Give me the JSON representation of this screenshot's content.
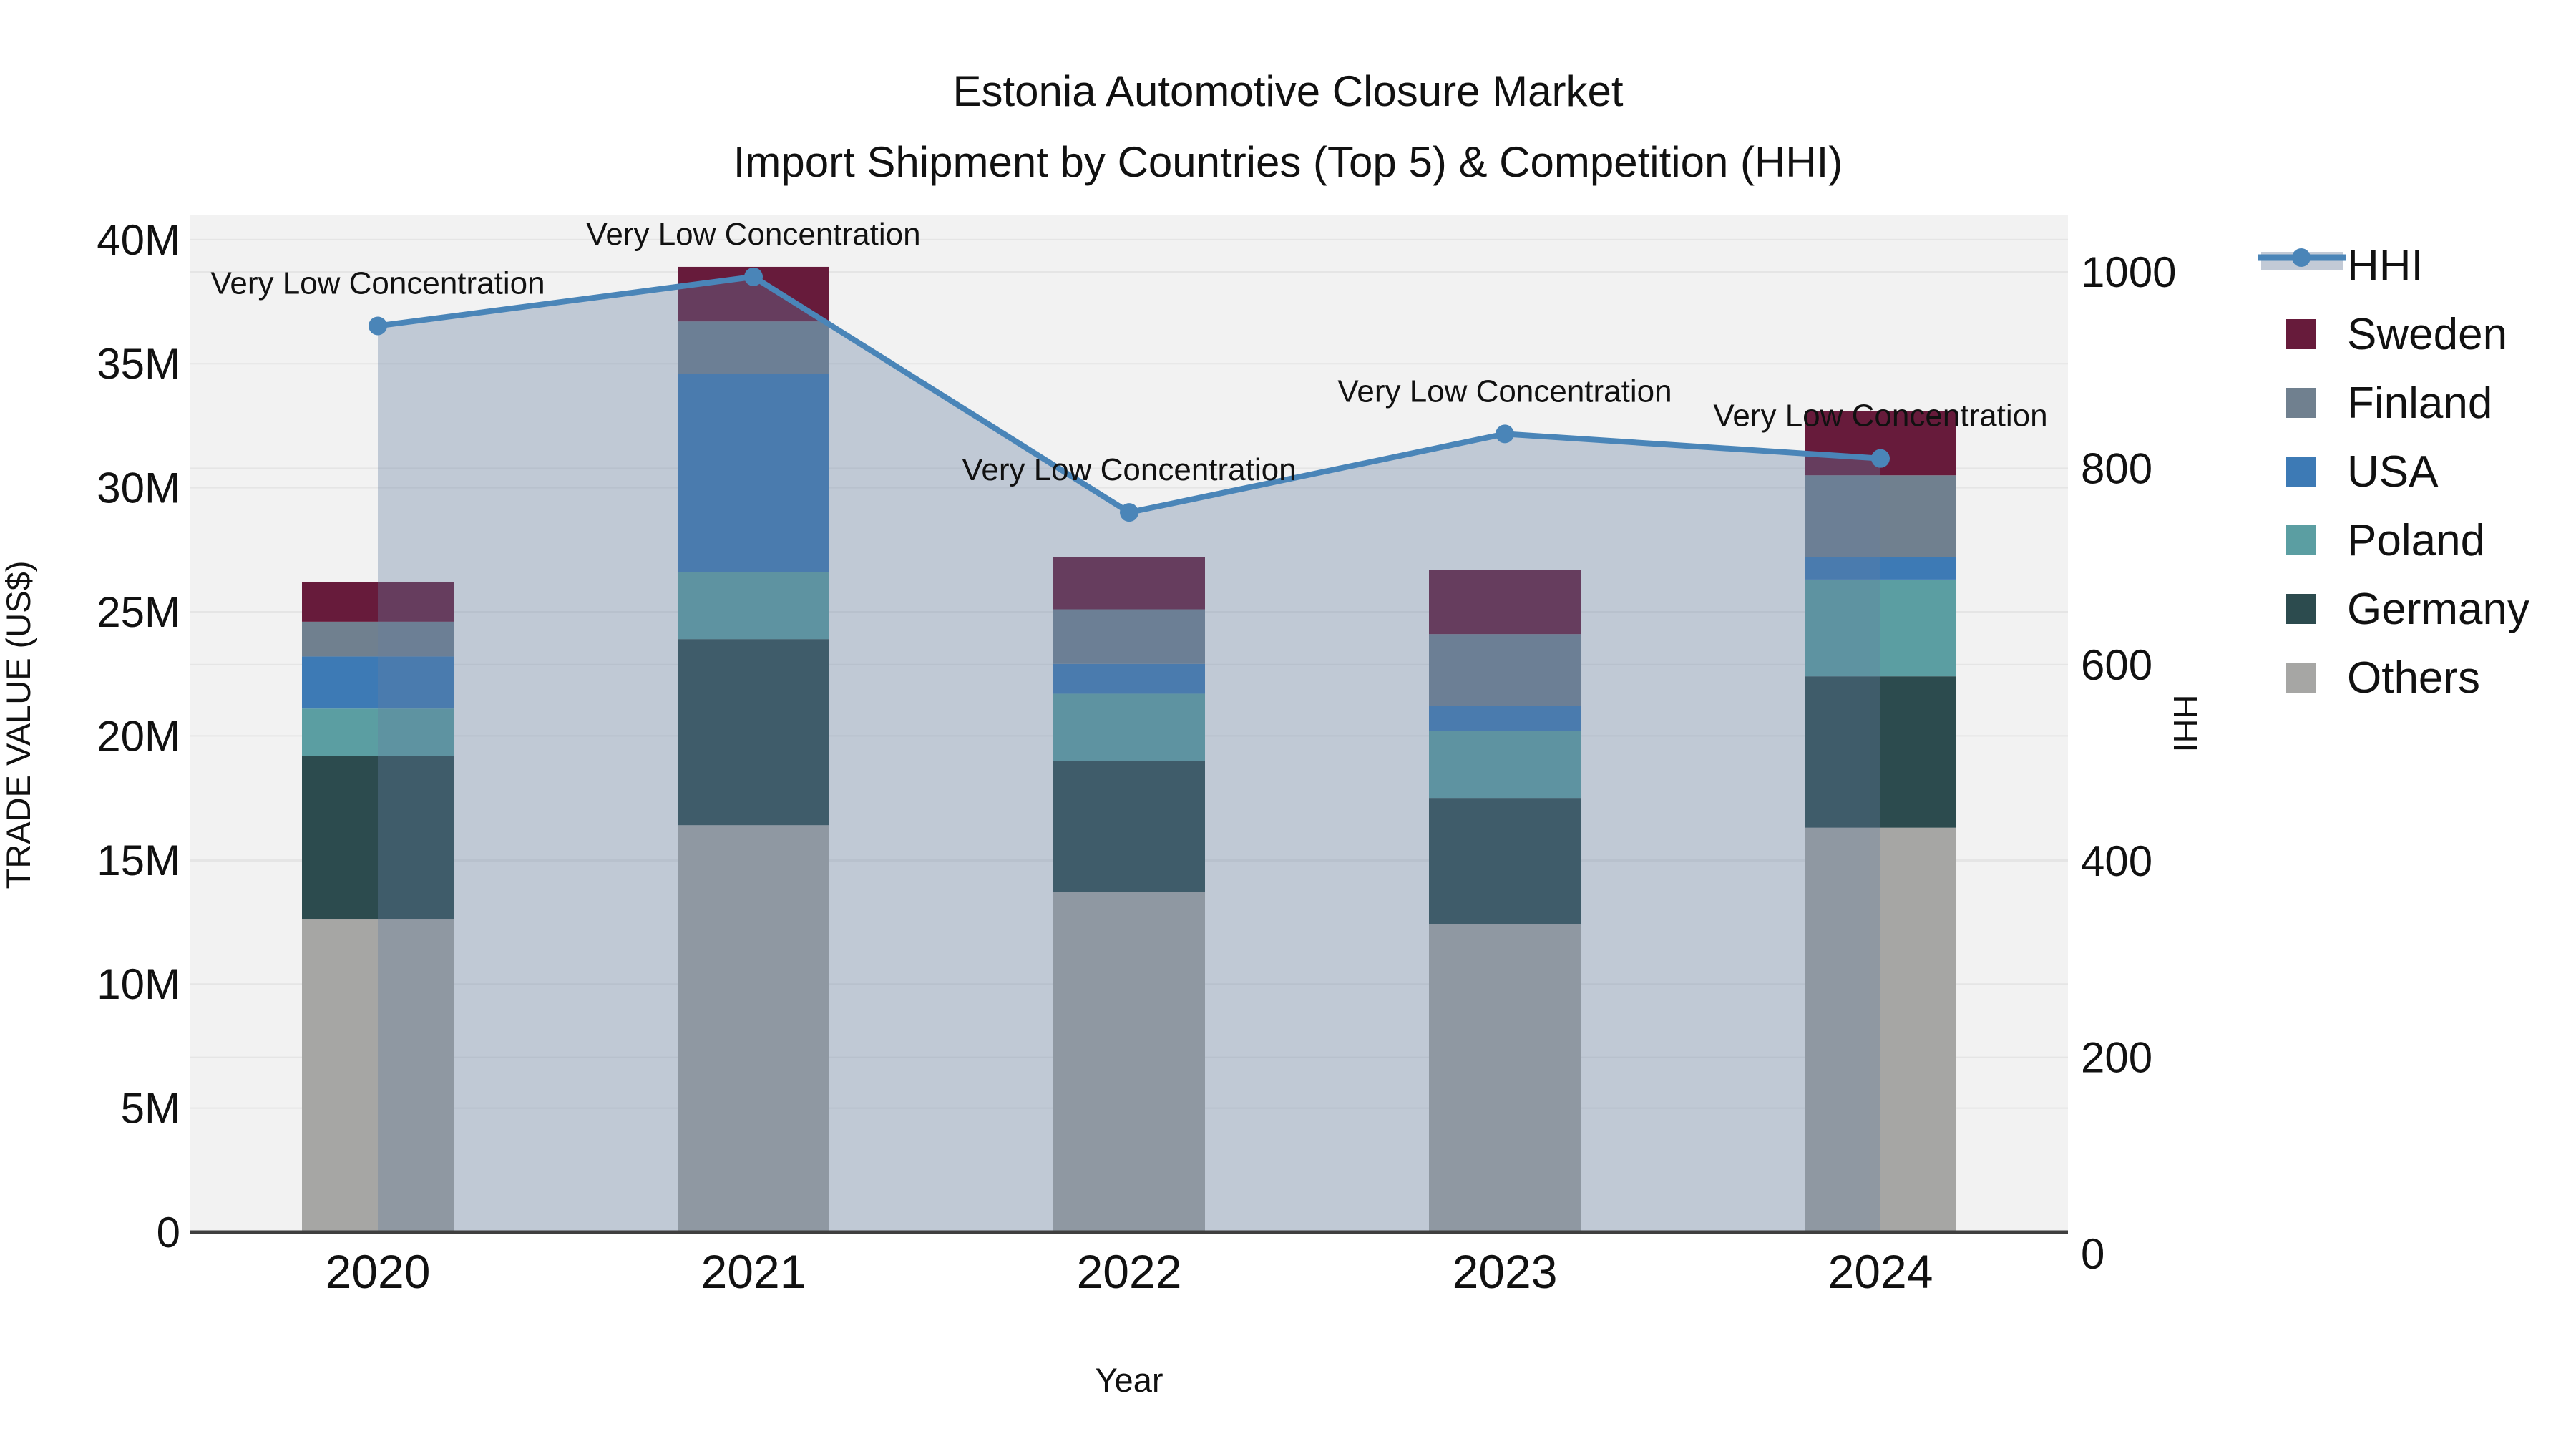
{
  "title": {
    "line1": "Estonia Automotive Closure Market",
    "line2": "Import Shipment by Countries (Top 5) & Competition (HHI)"
  },
  "axes": {
    "x": {
      "title": "Year",
      "categories": [
        "2020",
        "2021",
        "2022",
        "2023",
        "2024"
      ]
    },
    "y_left": {
      "title": "TRADE VALUE (US$)",
      "ticks": [
        "0",
        "5M",
        "10M",
        "15M",
        "20M",
        "25M",
        "30M",
        "35M",
        "40M"
      ],
      "tick_values_m": [
        0,
        5,
        10,
        15,
        20,
        25,
        30,
        35,
        40
      ],
      "range_m": [
        0,
        40.8
      ]
    },
    "y_right": {
      "title": "HHI",
      "ticks": [
        "0",
        "200",
        "400",
        "600",
        "800",
        "1000"
      ],
      "tick_values": [
        0,
        200,
        400,
        600,
        800,
        1000
      ],
      "range": [
        0,
        1000
      ]
    }
  },
  "colors": {
    "background": "#ffffff",
    "plot_background": "#f2f2f2",
    "gridline": "#e5e5e5",
    "axis_line": "#3f3f3f",
    "text": "#111111",
    "hhi_line": "#4a85b8",
    "hhi_area": "rgba(100,125,160,0.35)",
    "hhi_area_swatch": "#c2cad6",
    "sweden": "#671b3b",
    "finland": "#70808f",
    "usa": "#3d7ab5",
    "poland": "#5b9ea2",
    "germany": "#2c4b4e",
    "others": "#a6a6a4"
  },
  "legend": {
    "items": [
      {
        "id": "hhi",
        "label": "HHI",
        "type": "line"
      },
      {
        "id": "sweden",
        "label": "Sweden",
        "type": "swatch",
        "color": "#671b3b"
      },
      {
        "id": "finland",
        "label": "Finland",
        "type": "swatch",
        "color": "#70808f"
      },
      {
        "id": "usa",
        "label": "USA",
        "type": "swatch",
        "color": "#3d7ab5"
      },
      {
        "id": "poland",
        "label": "Poland",
        "type": "swatch",
        "color": "#5b9ea2"
      },
      {
        "id": "germany",
        "label": "Germany",
        "type": "swatch",
        "color": "#2c4b4e"
      },
      {
        "id": "others",
        "label": "Others",
        "type": "swatch",
        "color": "#a6a6a4"
      }
    ]
  },
  "chart_data": {
    "type": "bar+line",
    "title": "Estonia Automotive Closure Market — Import Shipment by Countries (Top 5) & Competition (HHI)",
    "categories": [
      "2020",
      "2021",
      "2022",
      "2023",
      "2024"
    ],
    "bar_unit": "US$ millions",
    "stack_series_bottom_to_top": [
      {
        "name": "Others",
        "color": "#a6a6a4",
        "values_m": [
          12.6,
          16.4,
          13.7,
          12.4,
          16.3
        ]
      },
      {
        "name": "Germany",
        "color": "#2c4b4e",
        "values_m": [
          6.6,
          7.5,
          5.3,
          5.1,
          6.1
        ]
      },
      {
        "name": "Poland",
        "color": "#5b9ea2",
        "values_m": [
          1.9,
          2.7,
          2.7,
          2.7,
          3.9
        ]
      },
      {
        "name": "USA",
        "color": "#3d7ab5",
        "values_m": [
          2.1,
          8.0,
          1.2,
          1.0,
          0.9
        ]
      },
      {
        "name": "Finland",
        "color": "#70808f",
        "values_m": [
          1.4,
          2.1,
          2.2,
          2.9,
          3.3
        ]
      },
      {
        "name": "Sweden",
        "color": "#671b3b",
        "values_m": [
          1.6,
          2.2,
          2.1,
          2.6,
          2.6
        ]
      }
    ],
    "bar_totals_m": [
      26.2,
      38.9,
      27.2,
      26.7,
      33.1
    ],
    "line_series": {
      "name": "HHI",
      "color": "#4a85b8",
      "values": [
        945,
        995,
        755,
        835,
        810
      ],
      "axis": "right",
      "area_fill": "rgba(100,125,160,0.35)"
    },
    "annotations": [
      {
        "category": "2020",
        "text": "Very Low Concentration"
      },
      {
        "category": "2021",
        "text": "Very Low Concentration"
      },
      {
        "category": "2022",
        "text": "Very Low Concentration"
      },
      {
        "category": "2023",
        "text": "Very Low Concentration"
      },
      {
        "category": "2024",
        "text": "Very Low Concentration"
      }
    ],
    "xlabel": "Year",
    "ylabel_left": "TRADE VALUE (US$)",
    "ylabel_right": "HHI",
    "legend_position": "right",
    "grid": true
  }
}
